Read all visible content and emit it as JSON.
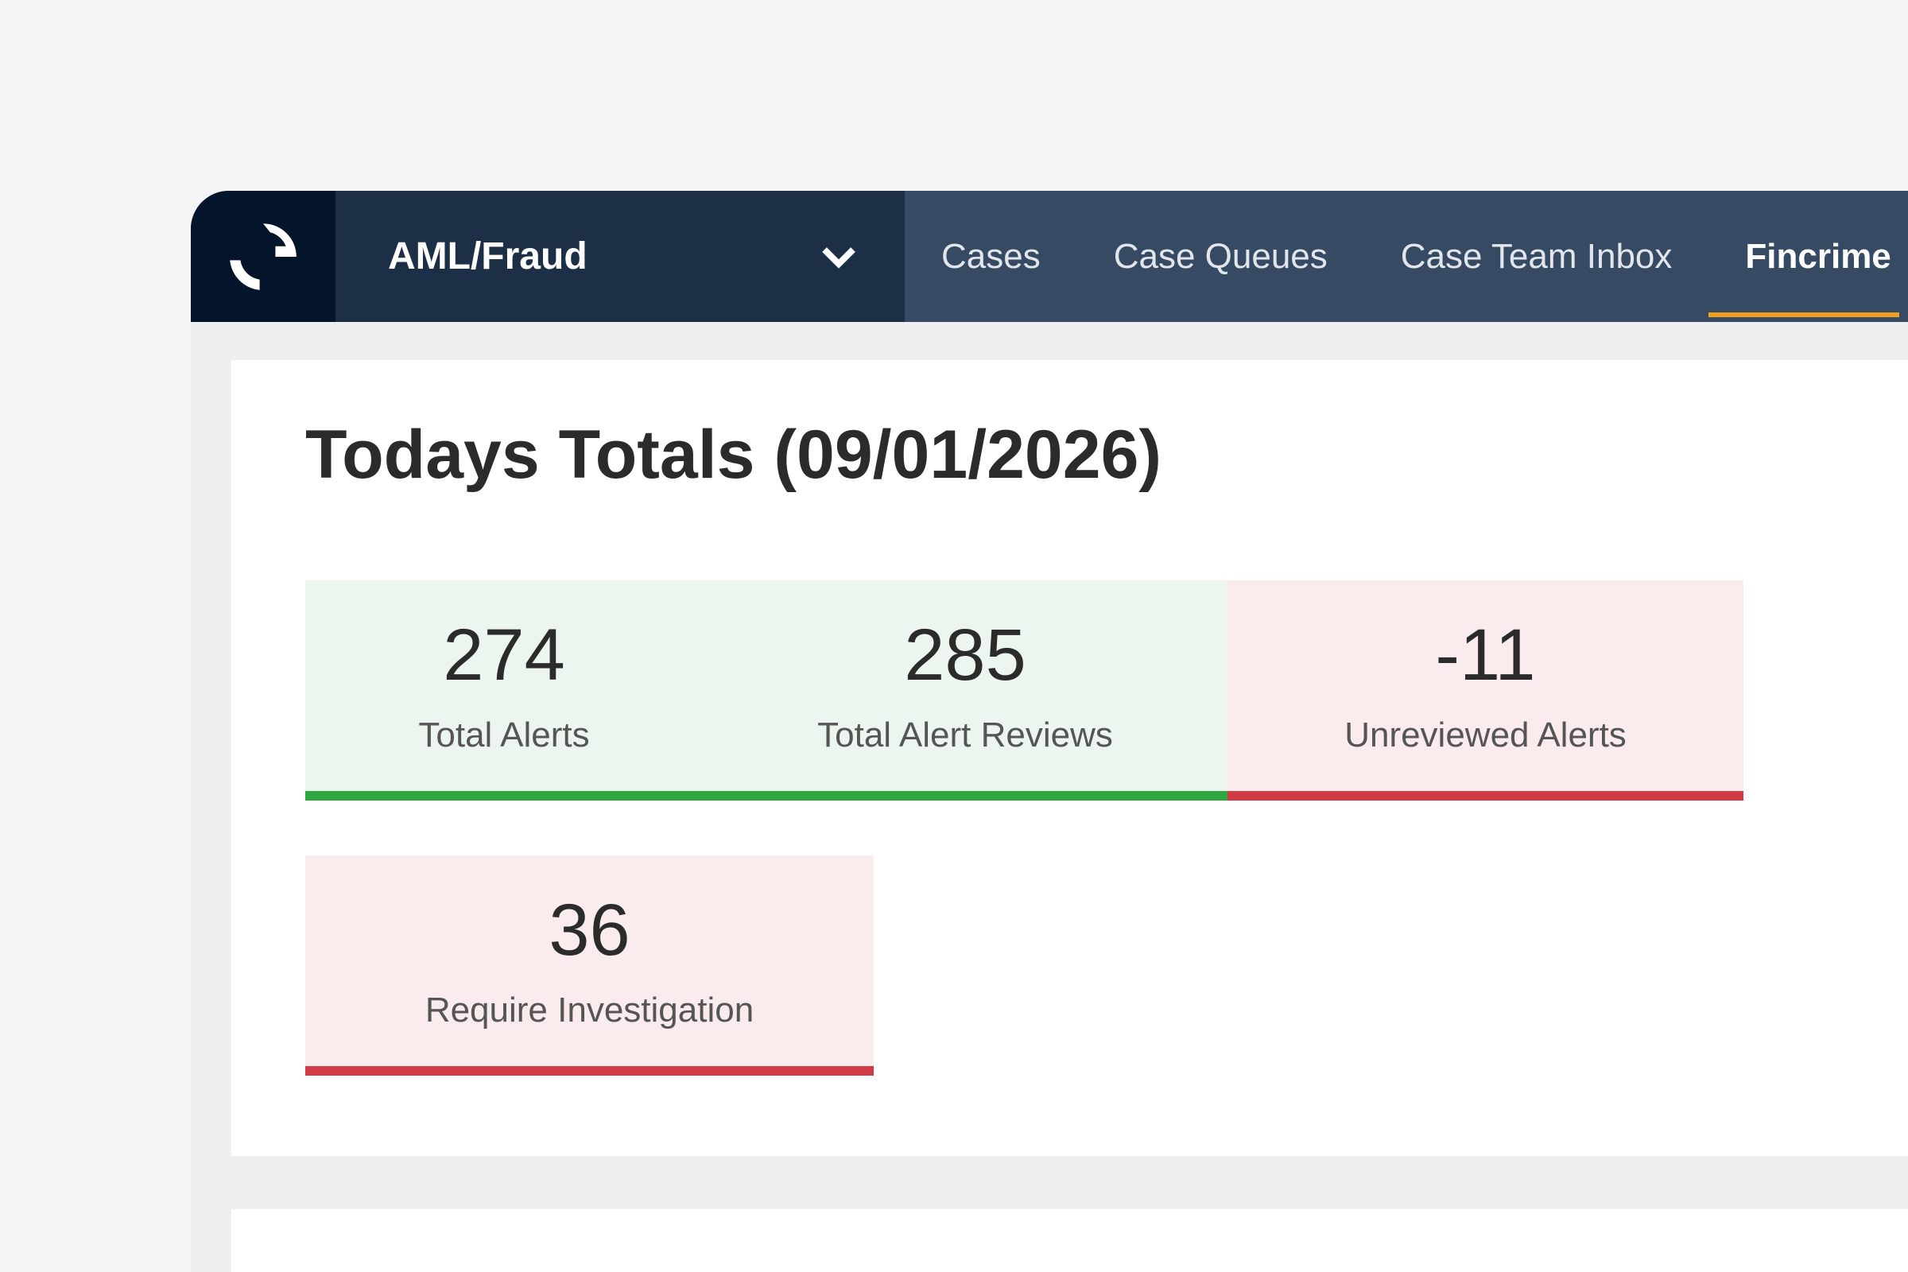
{
  "nav": {
    "logo_icon": "refresh-arcs-logo",
    "module": "AML/Fraud",
    "items": [
      {
        "label": "Cases",
        "active": false
      },
      {
        "label": "Case Queues",
        "active": false
      },
      {
        "label": "Case Team Inbox",
        "active": false
      },
      {
        "label": "Fincrime",
        "active": true
      }
    ],
    "accent": "#f0a020"
  },
  "main": {
    "title": "Todays Totals (09/01/2026)",
    "stats": [
      {
        "value": "274",
        "label": "Total Alerts",
        "status": "good"
      },
      {
        "value": "285",
        "label": "Total Alert Reviews",
        "status": "good"
      },
      {
        "value": "-11",
        "label": "Unreviewed Alerts",
        "status": "bad"
      },
      {
        "value": "36",
        "label": "Require Investigation",
        "status": "bad"
      }
    ],
    "colors": {
      "good": "#2ea63f",
      "bad": "#d13b45"
    }
  }
}
